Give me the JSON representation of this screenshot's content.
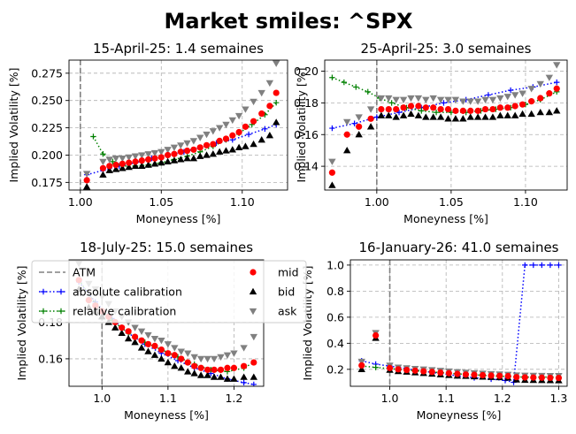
{
  "figure": {
    "suptitle": "Market smiles: ^SPX"
  },
  "colors": {
    "mid": "#ff0000",
    "bid": "#000000",
    "ask": "#808080",
    "absolute": "#0000ff",
    "relative": "#008000",
    "atm": "#808080"
  },
  "legend": {
    "placement": "upper-left of bottom-left panel",
    "entries": [
      {
        "key": "atm",
        "label": "ATM",
        "style": "dashed-line"
      },
      {
        "key": "absolute",
        "label": "absolute calibration",
        "style": "dotted-plus"
      },
      {
        "key": "relative",
        "label": "relative calibration",
        "style": "dotted-plus"
      },
      {
        "key": "mid",
        "label": "mid",
        "style": "circle"
      },
      {
        "key": "bid",
        "label": "bid",
        "style": "triangle-up"
      },
      {
        "key": "ask",
        "label": "ask",
        "style": "triangle-down"
      }
    ]
  },
  "chart_data": [
    {
      "type": "scatter",
      "title": "15-April-25: 1.4 semaines",
      "xlabel": "Moneyness [%]",
      "ylabel": "Implied Volatility [%]",
      "xlim": [
        0.993,
        1.128
      ],
      "ylim": [
        0.168,
        0.287
      ],
      "xticks": [
        1.0,
        1.05,
        1.1
      ],
      "yticks": [
        0.175,
        0.2,
        0.225,
        0.25,
        0.275
      ],
      "xtick_labels": [
        "1.00",
        "1.05",
        "1.10"
      ],
      "ytick_labels": [
        "0.175",
        "0.200",
        "0.225",
        "0.250",
        "0.275"
      ],
      "atm": 1.0,
      "grid": true,
      "x": [
        1.004,
        1.014,
        1.018,
        1.022,
        1.026,
        1.03,
        1.034,
        1.038,
        1.042,
        1.046,
        1.05,
        1.054,
        1.058,
        1.062,
        1.066,
        1.07,
        1.074,
        1.078,
        1.082,
        1.086,
        1.09,
        1.094,
        1.098,
        1.102,
        1.107,
        1.112,
        1.117,
        1.121
      ],
      "mid": [
        0.177,
        0.188,
        0.19,
        0.191,
        0.192,
        0.193,
        0.194,
        0.195,
        0.196,
        0.197,
        0.198,
        0.2,
        0.201,
        0.203,
        0.204,
        0.205,
        0.207,
        0.209,
        0.21,
        0.213,
        0.215,
        0.218,
        0.221,
        0.226,
        0.231,
        0.238,
        0.245,
        0.257
      ],
      "bid": [
        0.171,
        0.182,
        0.186,
        0.187,
        0.188,
        0.189,
        0.19,
        0.19,
        0.191,
        0.192,
        0.193,
        0.194,
        0.195,
        0.196,
        0.197,
        0.197,
        0.199,
        0.2,
        0.201,
        0.203,
        0.204,
        0.205,
        0.207,
        0.208,
        0.21,
        0.214,
        0.218,
        0.23
      ],
      "ask": [
        0.183,
        0.194,
        0.196,
        0.197,
        0.197,
        0.198,
        0.199,
        0.2,
        0.201,
        0.202,
        0.203,
        0.205,
        0.207,
        0.209,
        0.211,
        0.213,
        0.216,
        0.219,
        0.222,
        0.225,
        0.228,
        0.232,
        0.236,
        0.242,
        0.249,
        0.257,
        0.266,
        0.284
      ],
      "absolute": {
        "x": [
          1.004,
          1.014,
          1.024,
          1.034,
          1.044,
          1.054,
          1.064,
          1.074,
          1.084,
          1.094,
          1.104,
          1.114,
          1.121
        ],
        "y": [
          0.182,
          0.186,
          0.19,
          0.193,
          0.197,
          0.2,
          0.203,
          0.207,
          0.211,
          0.214,
          0.219,
          0.224,
          0.228
        ]
      },
      "relative": {
        "x": [
          1.008,
          1.014,
          1.02,
          1.026,
          1.034,
          1.042,
          1.05,
          1.058,
          1.066,
          1.074,
          1.082,
          1.09,
          1.098,
          1.106,
          1.114,
          1.121
        ],
        "y": [
          0.217,
          0.201,
          0.194,
          0.19,
          0.19,
          0.191,
          0.193,
          0.196,
          0.199,
          0.203,
          0.208,
          0.214,
          0.22,
          0.228,
          0.237,
          0.248
        ]
      }
    },
    {
      "type": "scatter",
      "title": "25-April-25: 3.0 semaines",
      "xlabel": "Moneyness [%]",
      "ylabel": "Implied Volatility [%]",
      "xlim": [
        0.965,
        1.128
      ],
      "ylim": [
        0.125,
        0.207
      ],
      "xticks": [
        1.0,
        1.05,
        1.1
      ],
      "yticks": [
        0.14,
        0.16,
        0.18,
        0.2
      ],
      "xtick_labels": [
        "1.00",
        "1.05",
        "1.10"
      ],
      "ytick_labels": [
        "0.14",
        "0.16",
        "0.18",
        "0.20"
      ],
      "atm": 1.0,
      "grid": true,
      "x": [
        0.97,
        0.98,
        0.988,
        0.996,
        1.003,
        1.008,
        1.013,
        1.018,
        1.023,
        1.028,
        1.033,
        1.038,
        1.043,
        1.048,
        1.053,
        1.058,
        1.063,
        1.068,
        1.073,
        1.078,
        1.083,
        1.088,
        1.093,
        1.098,
        1.104,
        1.11,
        1.116,
        1.121
      ],
      "mid": [
        0.136,
        0.16,
        0.165,
        0.17,
        0.176,
        0.176,
        0.176,
        0.177,
        0.178,
        0.178,
        0.177,
        0.177,
        0.176,
        0.176,
        0.175,
        0.175,
        0.175,
        0.175,
        0.176,
        0.176,
        0.177,
        0.177,
        0.178,
        0.179,
        0.181,
        0.183,
        0.186,
        0.189
      ],
      "bid": [
        0.128,
        0.15,
        0.16,
        0.165,
        0.172,
        0.172,
        0.171,
        0.172,
        0.173,
        0.172,
        0.171,
        0.171,
        0.171,
        0.17,
        0.17,
        0.17,
        0.171,
        0.171,
        0.171,
        0.171,
        0.172,
        0.172,
        0.172,
        0.173,
        0.173,
        0.174,
        0.174,
        0.175
      ],
      "ask": [
        0.143,
        0.168,
        0.171,
        0.176,
        0.183,
        0.183,
        0.182,
        0.182,
        0.183,
        0.183,
        0.182,
        0.183,
        0.182,
        0.182,
        0.182,
        0.181,
        0.181,
        0.181,
        0.182,
        0.182,
        0.183,
        0.184,
        0.185,
        0.186,
        0.189,
        0.192,
        0.196,
        0.204
      ],
      "absolute": {
        "x": [
          0.97,
          0.985,
          1.0,
          1.015,
          1.03,
          1.045,
          1.06,
          1.075,
          1.09,
          1.105,
          1.121
        ],
        "y": [
          0.164,
          0.167,
          0.171,
          0.174,
          0.177,
          0.18,
          0.182,
          0.185,
          0.188,
          0.19,
          0.193
        ]
      },
      "relative": {
        "x": [
          0.97,
          0.978,
          0.986,
          0.994,
          1.002,
          1.01,
          1.02,
          1.03,
          1.04,
          1.05,
          1.06,
          1.07,
          1.08,
          1.09,
          1.1,
          1.11,
          1.121
        ],
        "y": [
          0.196,
          0.193,
          0.19,
          0.187,
          0.183,
          0.18,
          0.177,
          0.175,
          0.174,
          0.174,
          0.174,
          0.175,
          0.176,
          0.177,
          0.179,
          0.182,
          0.187
        ]
      }
    },
    {
      "type": "scatter",
      "title": "18-July-25: 15.0 semaines",
      "xlabel": "Moneyness [%]",
      "ylabel": "Implied Volatility [%]",
      "xlim": [
        0.95,
        1.245
      ],
      "ylim": [
        0.145,
        0.214
      ],
      "xticks": [
        1.0,
        1.1,
        1.2
      ],
      "yticks": [
        0.16,
        0.18
      ],
      "xtick_labels": [
        "1.0",
        "1.1",
        "1.2"
      ],
      "ytick_labels": [
        "0.16",
        "0.18"
      ],
      "atm": 1.0,
      "grid": true,
      "x": [
        0.965,
        0.98,
        0.99,
        1.0,
        1.01,
        1.02,
        1.03,
        1.04,
        1.05,
        1.06,
        1.07,
        1.08,
        1.09,
        1.1,
        1.11,
        1.12,
        1.13,
        1.14,
        1.15,
        1.16,
        1.17,
        1.18,
        1.19,
        1.2,
        1.215,
        1.23
      ],
      "mid": [
        0.203,
        0.192,
        0.189,
        0.186,
        0.183,
        0.18,
        0.177,
        0.175,
        0.172,
        0.17,
        0.168,
        0.167,
        0.165,
        0.163,
        0.162,
        0.16,
        0.158,
        0.156,
        0.155,
        0.154,
        0.154,
        0.154,
        0.155,
        0.155,
        0.156,
        0.158
      ],
      "bid": [
        0.198,
        0.188,
        0.186,
        0.183,
        0.18,
        0.177,
        0.174,
        0.171,
        0.169,
        0.166,
        0.164,
        0.162,
        0.16,
        0.158,
        0.156,
        0.155,
        0.153,
        0.152,
        0.151,
        0.151,
        0.15,
        0.15,
        0.149,
        0.149,
        0.15,
        0.15
      ],
      "ask": [
        0.212,
        0.201,
        0.198,
        0.194,
        0.19,
        0.186,
        0.183,
        0.18,
        0.177,
        0.175,
        0.173,
        0.171,
        0.17,
        0.168,
        0.166,
        0.164,
        0.163,
        0.161,
        0.16,
        0.16,
        0.16,
        0.161,
        0.162,
        0.163,
        0.166,
        0.172
      ],
      "absolute": {
        "x": [
          0.965,
          0.99,
          1.015,
          1.04,
          1.065,
          1.09,
          1.115,
          1.14,
          1.165,
          1.19,
          1.215,
          1.23
        ],
        "y": [
          0.202,
          0.191,
          0.182,
          0.174,
          0.168,
          0.163,
          0.159,
          0.155,
          0.152,
          0.149,
          0.147,
          0.146
        ]
      },
      "relative": {
        "x": [
          0.965,
          0.99,
          1.015,
          1.04,
          1.065,
          1.09,
          1.115,
          1.14,
          1.165,
          1.19,
          1.215,
          1.23
        ],
        "y": [
          0.203,
          0.19,
          0.181,
          0.174,
          0.169,
          0.165,
          0.161,
          0.157,
          0.154,
          0.153,
          0.155,
          0.158
        ]
      }
    },
    {
      "type": "scatter",
      "title": "16-January-26: 41.0 semaines",
      "xlabel": "Moneyness [%]",
      "ylabel": "Implied Volatility [%]",
      "xlim": [
        0.93,
        1.315
      ],
      "ylim": [
        0.07,
        1.04
      ],
      "xticks": [
        0.9,
        1.0,
        1.1,
        1.2,
        1.3
      ],
      "yticks": [
        0.2,
        0.4,
        0.6,
        0.8,
        1.0
      ],
      "xtick_labels": [
        "0.9",
        "1.0",
        "1.1",
        "1.2",
        "1.3"
      ],
      "ytick_labels": [
        "0.2",
        "0.4",
        "0.6",
        "0.8",
        "1.0"
      ],
      "atm": 1.0,
      "grid": true,
      "x": [
        0.95,
        0.975,
        1.0,
        1.015,
        1.03,
        1.045,
        1.06,
        1.075,
        1.09,
        1.105,
        1.12,
        1.135,
        1.15,
        1.165,
        1.18,
        1.195,
        1.21,
        1.225,
        1.24,
        1.255,
        1.27,
        1.285,
        1.3
      ],
      "mid": [
        0.23,
        0.46,
        0.21,
        0.2,
        0.195,
        0.19,
        0.185,
        0.18,
        0.175,
        0.17,
        0.165,
        0.16,
        0.158,
        0.155,
        0.152,
        0.15,
        0.148,
        0.14,
        0.138,
        0.137,
        0.136,
        0.135,
        0.134
      ],
      "bid": [
        0.2,
        0.44,
        0.195,
        0.185,
        0.18,
        0.175,
        0.17,
        0.165,
        0.16,
        0.155,
        0.15,
        0.148,
        0.145,
        0.142,
        0.14,
        0.138,
        0.135,
        0.12,
        0.118,
        0.117,
        0.116,
        0.115,
        0.114
      ],
      "ask": [
        0.26,
        0.48,
        0.23,
        0.215,
        0.21,
        0.205,
        0.2,
        0.195,
        0.19,
        0.185,
        0.18,
        0.176,
        0.172,
        0.168,
        0.165,
        0.162,
        0.16,
        0.155,
        0.153,
        0.152,
        0.151,
        0.15,
        0.15
      ],
      "absolute": {
        "x": [
          0.95,
          0.975,
          1.0,
          1.03,
          1.06,
          1.09,
          1.12,
          1.15,
          1.18,
          1.205,
          1.22,
          1.24,
          1.255,
          1.27,
          1.285,
          1.3
        ],
        "y": [
          0.265,
          0.24,
          0.225,
          0.205,
          0.185,
          0.168,
          0.15,
          0.135,
          0.125,
          0.115,
          0.1,
          1.0,
          1.0,
          1.0,
          1.0,
          1.0
        ]
      },
      "relative": {
        "x": [
          0.95,
          0.975,
          1.0,
          1.03,
          1.06,
          1.09,
          1.12,
          1.15,
          1.18,
          1.21,
          1.24,
          1.27,
          1.3
        ],
        "y": [
          0.225,
          0.215,
          0.205,
          0.195,
          0.185,
          0.175,
          0.165,
          0.158,
          0.15,
          0.145,
          0.14,
          0.14,
          0.14
        ]
      }
    }
  ]
}
